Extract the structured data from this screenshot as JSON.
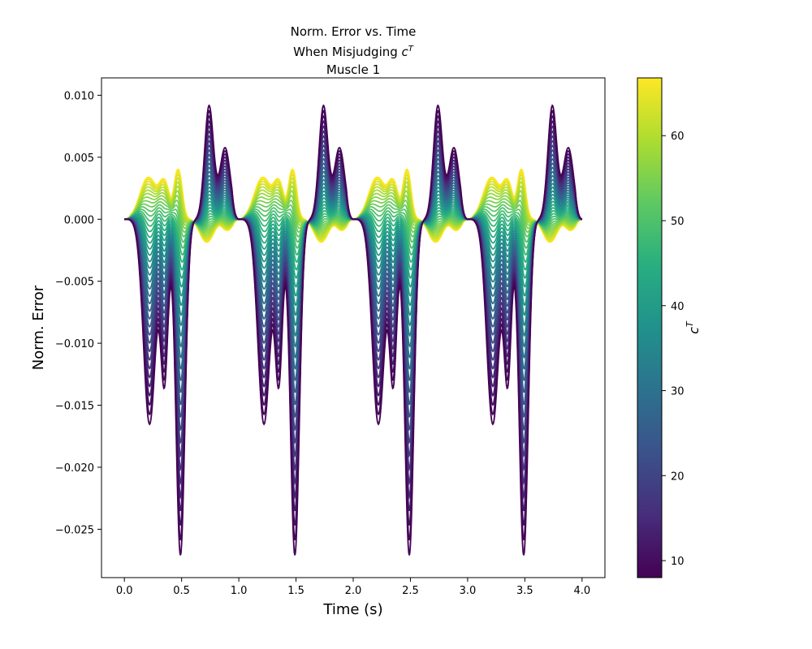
{
  "chart_data": {
    "type": "line",
    "title_lines": [
      "Norm. Error vs. Time",
      "When Misjudging ",
      "Muscle 1"
    ],
    "title_symbol": "c",
    "title_symbol_sup": "T",
    "xlabel": "Time (s)",
    "ylabel": "Norm. Error",
    "xlim": [
      -0.2,
      4.2
    ],
    "ylim": [
      -0.0289,
      0.0114
    ],
    "xticks": [
      "0.0",
      "0.5",
      "1.0",
      "1.5",
      "2.0",
      "2.5",
      "3.0",
      "3.5",
      "4.0"
    ],
    "yticks": [
      "0.010",
      "0.005",
      "0.000",
      "−0.005",
      "−0.010",
      "−0.015",
      "−0.020",
      "−0.025"
    ],
    "ytick_values": [
      0.01,
      0.005,
      0.0,
      -0.005,
      -0.01,
      -0.015,
      -0.02,
      -0.025
    ],
    "grid": false,
    "period_s": 1.0,
    "x_range": [
      0.0,
      4.0
    ],
    "series_cT_range": [
      8,
      66.8
    ],
    "series_count": 40,
    "extremes": {
      "most_negative_at_cT_8": -0.0271,
      "most_positive_at_cT_8": 0.0096,
      "max_at_cT_66_8": 0.0049,
      "min_at_cT_66_8": -0.0019
    },
    "colorbar": {
      "label": "c",
      "label_sup": "T",
      "colormap": "viridis",
      "range": [
        8,
        66.8
      ],
      "ticks": [
        "10",
        "20",
        "30",
        "40",
        "50",
        "60"
      ],
      "tick_values": [
        10,
        20,
        30,
        40,
        50,
        60
      ]
    }
  }
}
